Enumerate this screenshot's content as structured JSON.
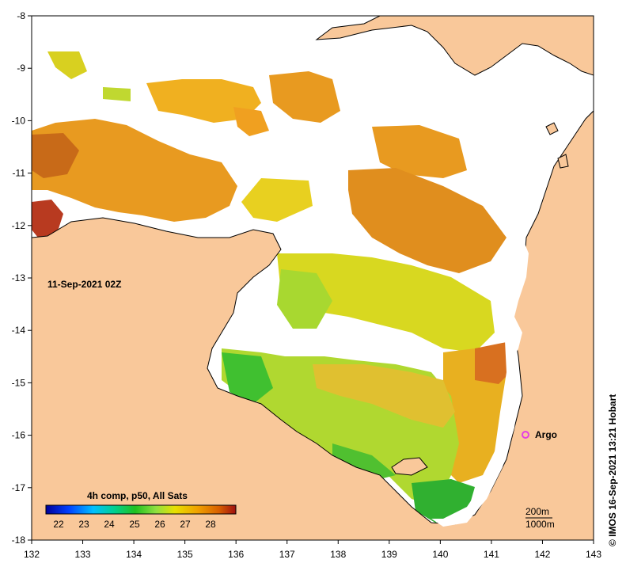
{
  "map": {
    "timestamp": "11-Sep-2021 02Z",
    "credit": "© IMOS 16-Sep-2021 13:21 Hobart",
    "argo_label": "Argo",
    "depth_labels": [
      "200m",
      "1000m"
    ],
    "x_ticks": [
      132,
      133,
      134,
      135,
      136,
      137,
      138,
      139,
      140,
      141,
      142,
      143
    ],
    "y_ticks": [
      -8,
      -9,
      -10,
      -11,
      -12,
      -13,
      -14,
      -15,
      -16,
      -17,
      -18
    ],
    "lon_range": [
      132,
      143
    ],
    "lat_range": [
      -18,
      -8
    ],
    "colors": {
      "land": "#f9c89a",
      "ocean_nodata": "#ffffff",
      "argo_marker": "#e43ee4",
      "coastline": "#000000"
    }
  },
  "legend": {
    "title": "4h comp, p50, All Sats",
    "ticks": [
      "22",
      "23",
      "24",
      "25",
      "26",
      "27",
      "28"
    ],
    "range": [
      21.5,
      29.0
    ],
    "colormap": [
      "#00009a",
      "#0040ff",
      "#00c0ff",
      "#00d090",
      "#20c020",
      "#90e040",
      "#e8e000",
      "#f0a000",
      "#d86000",
      "#a01010"
    ]
  }
}
